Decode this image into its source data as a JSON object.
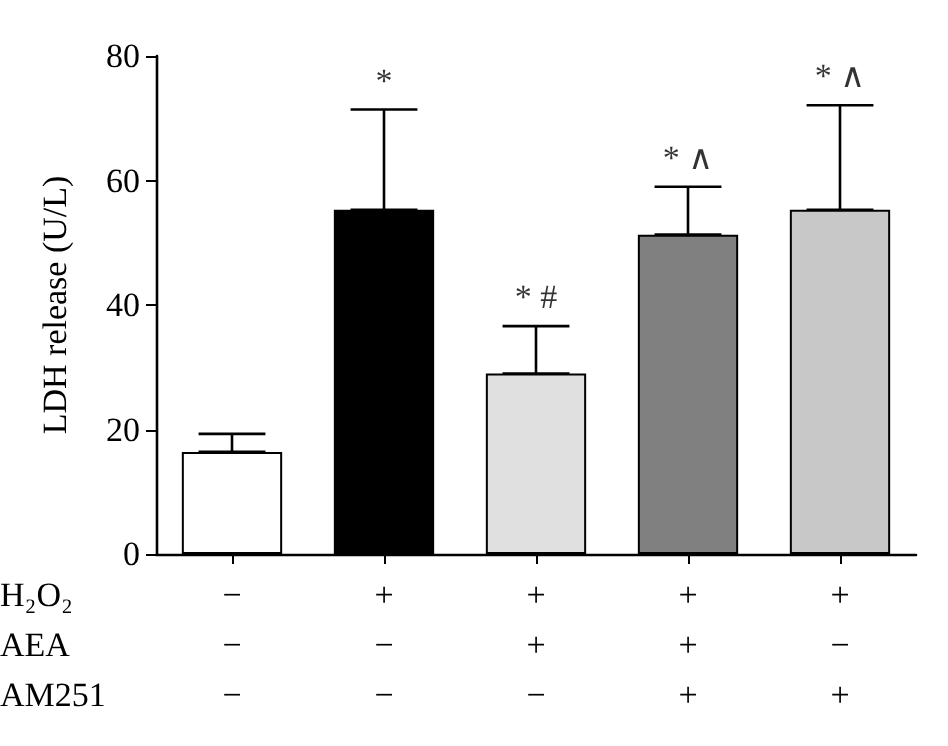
{
  "chart_data": {
    "type": "bar",
    "ylabel": "LDH release (U/L)",
    "xlabel": "H₂O₂\nAEA\nAM251",
    "categories": [
      "−\n−\n−",
      "+\n−\n−",
      "+\n+\n−",
      "+\n+\n+",
      "+\n−\n+"
    ],
    "values": [
      16.4,
      55.3,
      29.0,
      51.3,
      55.3
    ],
    "errors": [
      [
        16.4,
        19.3
      ],
      [
        55.3,
        71.4
      ],
      [
        29.0,
        36.6
      ],
      [
        51.3,
        59.0
      ],
      [
        55.3,
        72.1
      ]
    ],
    "colors": [
      "#ffffff",
      "#000000",
      "#e0e0e0",
      "#808080",
      "#c8c8c8"
    ],
    "ylim": [
      0,
      80
    ],
    "yticks": [
      0,
      20,
      40,
      60,
      80
    ],
    "annotations": [
      {
        "text": "*",
        "x": "+\n−\n−",
        "y": 71.4
      },
      {
        "text": "* #",
        "x": "+\n+\n−",
        "y": 36.6
      },
      {
        "text": "* ∧",
        "x": "+\n+\n+",
        "y": 59.0
      },
      {
        "text": "* ∧",
        "x": "+\n−\n+",
        "y": 72.1
      }
    ],
    "grid": false
  }
}
